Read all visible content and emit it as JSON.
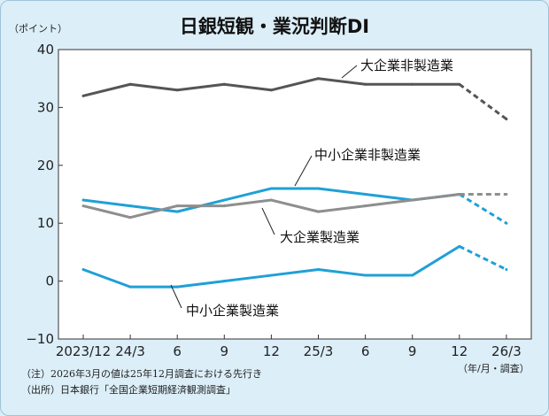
{
  "title": "日銀短観・業況判断DI",
  "y_unit": "（ポイント）",
  "x_unit": "（年/月・調査）",
  "notes": [
    "（注）2026年3月の値は25年12月調査における先行き",
    "（出所）日本銀行「全国企業短期経済観測調査」"
  ],
  "chart_data": {
    "type": "line",
    "title": "日銀短観・業況判断DI",
    "ylabel": "（ポイント）",
    "xlabel": "（年/月・調査）",
    "categories": [
      "2023/12",
      "24/3",
      "6",
      "9",
      "12",
      "25/3",
      "6",
      "9",
      "12",
      "26/3"
    ],
    "ylim": [
      -10,
      40
    ],
    "yticks": [
      -10,
      0,
      10,
      20,
      30,
      40
    ],
    "grid": false,
    "forecast_from_index": 8,
    "series": [
      {
        "name": "大企業非製造業",
        "color": "#555555",
        "values": [
          32,
          34,
          33,
          34,
          33,
          35,
          34,
          34,
          34,
          28
        ]
      },
      {
        "name": "中小企業非製造業",
        "color": "#1fa0d6",
        "values": [
          14,
          13,
          12,
          14,
          16,
          16,
          15,
          14,
          15,
          10
        ]
      },
      {
        "name": "大企業製造業",
        "color": "#8e8e8e",
        "values": [
          13,
          11,
          13,
          13,
          14,
          12,
          13,
          14,
          15,
          15
        ]
      },
      {
        "name": "中小企業製造業",
        "color": "#1fa0d6",
        "values": [
          2,
          -1,
          -1,
          0,
          1,
          2,
          1,
          1,
          6,
          2
        ]
      }
    ]
  }
}
